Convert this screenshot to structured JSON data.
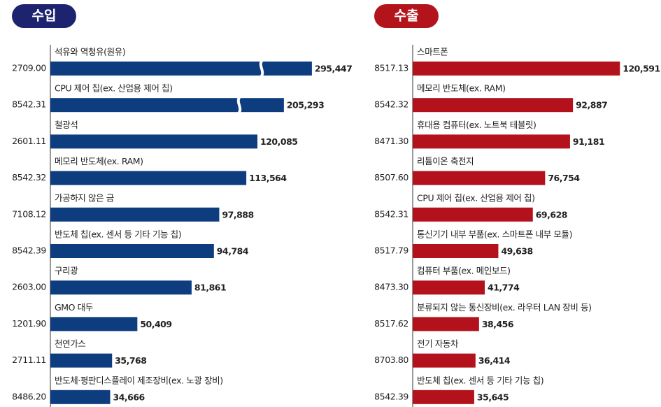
{
  "chart_data": [
    {
      "type": "bar",
      "orientation": "horizontal",
      "title": "수입",
      "title_color": "#1e2370",
      "color": "#0d3c7f",
      "categories": [
        "석유와 역청유(원유)",
        "CPU 제어 칩(ex. 산업용 제어 칩)",
        "철광석",
        "메모리 반도체(ex. RAM)",
        "가공하지 않은 금",
        "반도체 칩(ex. 센서 등 기타 기능 칩)",
        "구리광",
        "GMO 대두",
        "천연가스",
        "반도체·평판디스플레이 제조장비(ex. 노광 장비)"
      ],
      "codes": [
        "2709.00",
        "8542.31",
        "2601.11",
        "8542.32",
        "7108.12",
        "8542.39",
        "2603.00",
        "1201.90",
        "2711.11",
        "8486.20"
      ],
      "values": [
        295447,
        205293,
        120085,
        113564,
        97888,
        94784,
        81861,
        50409,
        35768,
        34666
      ],
      "value_labels": [
        "295,447",
        "205,293",
        "120,085",
        "113,564",
        "97,888",
        "94,784",
        "81,861",
        "50,409",
        "35,768",
        "34,666"
      ],
      "xlim": [
        0,
        150000
      ]
    },
    {
      "type": "bar",
      "orientation": "horizontal",
      "title": "수출",
      "title_color": "#b3141c",
      "color": "#b3111b",
      "categories": [
        "스마트폰",
        "메모리 반도체(ex. RAM)",
        "휴대용 컴퓨터(ex. 노트북 테블릿)",
        "리튬이온 축전지",
        "CPU 제어 칩(ex. 산업용 제어 칩)",
        "통신기기 내부 부품(ex. 스마트폰 내부 모듈)",
        "컴퓨터 부품(ex. 메인보드)",
        "분류되지 않는 통신장비(ex. 라우터 LAN 장비 등)",
        "전기 자동차",
        "반도체 칩(ex. 센서 등 기타 기능 칩)"
      ],
      "codes": [
        "8517.13",
        "8542.32",
        "8471.30",
        "8507.60",
        "8542.31",
        "8517.79",
        "8473.30",
        "8517.62",
        "8703.80",
        "8542.39"
      ],
      "values": [
        120591,
        92887,
        91181,
        76754,
        69628,
        49638,
        41774,
        38456,
        36414,
        35645
      ],
      "value_labels": [
        "120,591",
        "92,887",
        "91,181",
        "76,754",
        "69,628",
        "49,638",
        "41,774",
        "38,456",
        "36,414",
        "35,645"
      ],
      "xlim": [
        0,
        150000
      ]
    }
  ]
}
